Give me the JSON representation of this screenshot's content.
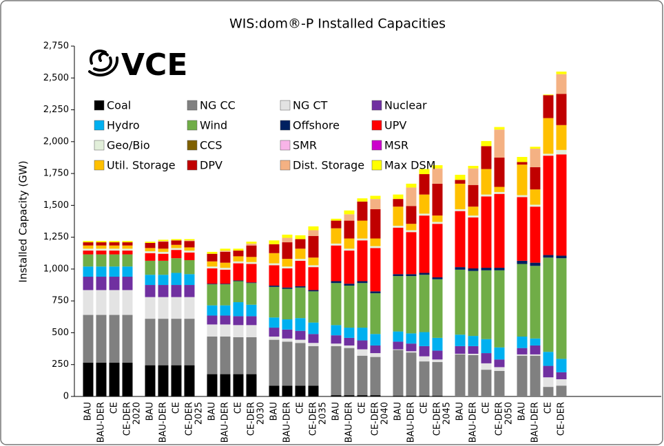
{
  "chart_data": {
    "type": "stacked_bar",
    "title": "WIS:dom®-P Installed Capacities",
    "logo": "VCE",
    "ylabel": "Installed Capacity (GW)",
    "ylim": [
      0,
      2750
    ],
    "yticks": [
      0,
      250,
      500,
      750,
      {
        "value": 1000,
        "label": "1,000"
      },
      {
        "value": 1250,
        "label": "1,250"
      },
      {
        "value": 1500,
        "label": "1,500"
      },
      {
        "value": 1750,
        "label": "1,750"
      },
      {
        "value": 2000,
        "label": "2,000"
      },
      {
        "value": 2250,
        "label": "2,250"
      },
      {
        "value": 2500,
        "label": "2,500"
      },
      {
        "value": 2750,
        "label": "2,750"
      }
    ],
    "grid": false,
    "categories": [
      "BAU",
      "BAU-DER",
      "CE",
      "CE-DER",
      "2020",
      "BAU",
      "BAU-DER",
      "CE",
      "CE-DER",
      "2025",
      "BAU",
      "BAU-DER",
      "CE",
      "CE-DER",
      "2030",
      "BAU",
      "BAU-DER",
      "CE",
      "CE-DER",
      "2035",
      "BAU",
      "BAU-DER",
      "CE",
      "CE-DER",
      "2040",
      "BAU",
      "BAU-DER",
      "CE",
      "CE-DER",
      "2045",
      "BAU",
      "BAU-DER",
      "CE",
      "CE-DER",
      "2050",
      "BAU",
      "BAU-DER",
      "CE",
      "CE-DER"
    ],
    "series": [
      {
        "name": "Coal",
        "color": "#000000",
        "values": [
          265,
          265,
          265,
          265,
          null,
          245,
          245,
          245,
          245,
          null,
          175,
          175,
          175,
          175,
          null,
          85,
          85,
          85,
          85,
          null,
          10,
          10,
          10,
          10,
          null,
          5,
          5,
          5,
          5,
          null,
          0,
          0,
          0,
          0,
          null,
          0,
          0,
          0,
          0
        ]
      },
      {
        "name": "NG CC",
        "color": "#808080",
        "values": [
          375,
          375,
          375,
          375,
          null,
          365,
          365,
          365,
          365,
          null,
          295,
          295,
          290,
          290,
          null,
          360,
          345,
          335,
          310,
          null,
          385,
          370,
          310,
          300,
          null,
          360,
          340,
          270,
          265,
          null,
          330,
          325,
          210,
          200,
          null,
          320,
          320,
          75,
          85
        ]
      },
      {
        "name": "NG CT",
        "color": "#e3e3e3",
        "values": [
          195,
          195,
          195,
          195,
          null,
          170,
          170,
          170,
          170,
          null,
          95,
          95,
          95,
          95,
          null,
          25,
          25,
          25,
          25,
          null,
          20,
          20,
          50,
          30,
          null,
          5,
          10,
          40,
          20,
          null,
          5,
          10,
          50,
          30,
          null,
          10,
          10,
          75,
          50
        ]
      },
      {
        "name": "Nuclear",
        "color": "#7030a0",
        "values": [
          105,
          105,
          105,
          105,
          null,
          95,
          95,
          95,
          95,
          null,
          70,
          70,
          70,
          70,
          null,
          70,
          70,
          70,
          70,
          null,
          65,
          60,
          70,
          60,
          null,
          60,
          60,
          80,
          70,
          null,
          60,
          60,
          80,
          60,
          null,
          50,
          70,
          90,
          55
        ]
      },
      {
        "name": "Hydro",
        "color": "#00b0f0",
        "values": [
          80,
          80,
          80,
          80,
          null,
          80,
          80,
          95,
          85,
          null,
          80,
          80,
          110,
          90,
          null,
          80,
          80,
          100,
          90,
          null,
          80,
          80,
          100,
          90,
          null,
          80,
          80,
          110,
          100,
          null,
          90,
          80,
          110,
          95,
          null,
          90,
          55,
          110,
          105
        ]
      },
      {
        "name": "Wind",
        "color": "#70ad47",
        "values": [
          95,
          95,
          95,
          95,
          null,
          110,
          110,
          115,
          110,
          null,
          165,
          165,
          165,
          170,
          null,
          240,
          240,
          240,
          245,
          null,
          330,
          330,
          350,
          320,
          null,
          435,
          450,
          450,
          460,
          null,
          510,
          510,
          540,
          605,
          null,
          570,
          570,
          740,
          790
        ]
      },
      {
        "name": "Offshore",
        "color": "#002060",
        "values": [
          0,
          0,
          0,
          0,
          null,
          0,
          0,
          0,
          0,
          null,
          5,
          5,
          5,
          5,
          null,
          10,
          10,
          10,
          10,
          null,
          15,
          15,
          15,
          15,
          null,
          15,
          15,
          15,
          15,
          null,
          20,
          20,
          20,
          20,
          null,
          25,
          25,
          20,
          20
        ]
      },
      {
        "name": "UPV",
        "color": "#ff0000",
        "values": [
          30,
          30,
          30,
          30,
          null,
          60,
          55,
          65,
          60,
          null,
          120,
          110,
          135,
          145,
          null,
          160,
          150,
          200,
          180,
          null,
          280,
          260,
          320,
          340,
          null,
          365,
          330,
          450,
          420,
          null,
          440,
          400,
          560,
          580,
          null,
          500,
          440,
          780,
          795
        ]
      },
      {
        "name": "Geo/Bio",
        "color": "#e2efda",
        "values": [
          15,
          15,
          15,
          15,
          null,
          15,
          15,
          15,
          15,
          null,
          15,
          15,
          15,
          15,
          null,
          15,
          15,
          15,
          15,
          null,
          15,
          15,
          15,
          15,
          null,
          15,
          15,
          15,
          15,
          null,
          15,
          15,
          15,
          15,
          null,
          15,
          15,
          15,
          35
        ]
      },
      {
        "name": "CCS",
        "color": "#7f6000",
        "values": [
          0,
          0,
          0,
          0,
          null,
          0,
          0,
          0,
          0,
          null,
          0,
          0,
          0,
          0,
          null,
          0,
          0,
          0,
          0,
          null,
          0,
          0,
          0,
          0,
          null,
          0,
          0,
          0,
          0,
          null,
          0,
          0,
          0,
          0,
          null,
          0,
          0,
          0,
          0
        ]
      },
      {
        "name": "SMR",
        "color": "#f8b4e8",
        "values": [
          0,
          0,
          0,
          0,
          null,
          0,
          0,
          0,
          0,
          null,
          0,
          0,
          0,
          0,
          null,
          0,
          0,
          0,
          0,
          null,
          0,
          0,
          0,
          0,
          null,
          0,
          0,
          0,
          0,
          null,
          0,
          0,
          0,
          0,
          null,
          0,
          0,
          0,
          0
        ]
      },
      {
        "name": "MSR",
        "color": "#cc00cc",
        "values": [
          0,
          0,
          0,
          0,
          null,
          0,
          0,
          0,
          0,
          null,
          0,
          0,
          0,
          0,
          null,
          0,
          0,
          0,
          0,
          null,
          0,
          0,
          0,
          0,
          null,
          0,
          0,
          0,
          0,
          null,
          0,
          0,
          0,
          0,
          null,
          0,
          0,
          0,
          0
        ]
      },
      {
        "name": "Util. Storage",
        "color": "#ffc000",
        "values": [
          25,
          25,
          25,
          25,
          null,
          25,
          25,
          25,
          25,
          null,
          40,
          40,
          40,
          40,
          null,
          80,
          60,
          80,
          60,
          null,
          120,
          80,
          140,
          60,
          null,
          150,
          50,
          150,
          50,
          null,
          200,
          70,
          200,
          40,
          null,
          240,
          120,
          280,
          195
        ]
      },
      {
        "name": "DPV",
        "color": "#c00000",
        "values": [
          25,
          25,
          25,
          25,
          null,
          40,
          55,
          35,
          50,
          null,
          60,
          85,
          45,
          90,
          null,
          70,
          130,
          75,
          170,
          null,
          60,
          140,
          150,
          230,
          null,
          60,
          140,
          160,
          250,
          null,
          30,
          170,
          180,
          230,
          null,
          20,
          175,
          180,
          245
        ]
      },
      {
        "name": "Dist. Storage",
        "color": "#f4b183",
        "values": [
          0,
          0,
          0,
          0,
          null,
          0,
          5,
          0,
          5,
          null,
          0,
          10,
          0,
          15,
          null,
          0,
          35,
          0,
          45,
          null,
          0,
          50,
          0,
          80,
          null,
          0,
          145,
          0,
          120,
          null,
          0,
          130,
          0,
          220,
          null,
          0,
          145,
          0,
          155
        ]
      },
      {
        "name": "Max DSM",
        "color": "#ffff00",
        "values": [
          10,
          10,
          10,
          10,
          null,
          10,
          10,
          10,
          10,
          null,
          15,
          15,
          15,
          15,
          null,
          30,
          25,
          30,
          30,
          null,
          15,
          30,
          25,
          25,
          null,
          35,
          30,
          40,
          25,
          null,
          40,
          20,
          40,
          20,
          null,
          40,
          15,
          5,
          20
        ]
      }
    ]
  }
}
